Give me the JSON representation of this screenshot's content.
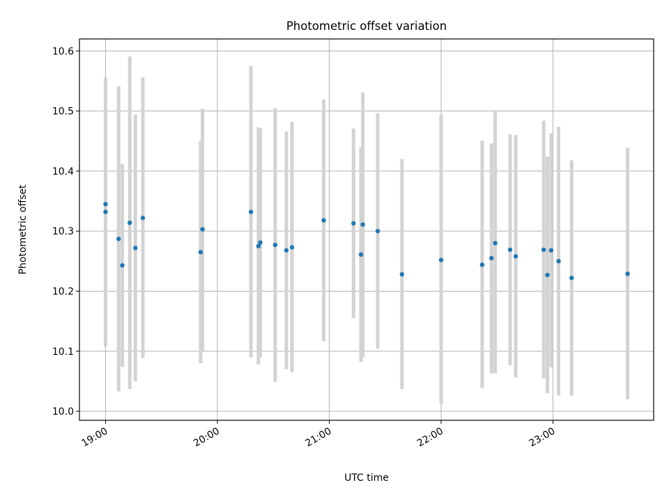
{
  "chart_data": {
    "type": "scatter",
    "title": "Photometric offset variation",
    "xlabel": "UTC time",
    "ylabel": "Photometric offset",
    "xlim": [
      "18:46",
      "23:54"
    ],
    "ylim": [
      9.985,
      10.62
    ],
    "grid": true,
    "x_ticks": [
      "19:00",
      "20:00",
      "21:00",
      "22:00",
      "23:00"
    ],
    "y_ticks": [
      "10.0",
      "10.1",
      "10.2",
      "10.3",
      "10.4",
      "10.5",
      "10.6"
    ],
    "y_tick_values": [
      10.0,
      10.1,
      10.2,
      10.3,
      10.4,
      10.5,
      10.6
    ],
    "colors": {
      "points": "#1f77b4",
      "errorbars": "#d3d3d3"
    },
    "series": [
      {
        "marker": "point",
        "errorbars": "vertical",
        "points": [
          {
            "x": "19:00",
            "y": 10.345,
            "low": 10.134,
            "high": 10.556
          },
          {
            "x": "19:00",
            "y": 10.332,
            "low": 10.108,
            "high": 10.556
          },
          {
            "x": "19:07",
            "y": 10.287,
            "low": 10.033,
            "high": 10.541
          },
          {
            "x": "19:09",
            "y": 10.243,
            "low": 10.074,
            "high": 10.412
          },
          {
            "x": "19:13",
            "y": 10.314,
            "low": 10.037,
            "high": 10.591
          },
          {
            "x": "19:16",
            "y": 10.272,
            "low": 10.05,
            "high": 10.494
          },
          {
            "x": "19:20",
            "y": 10.322,
            "low": 10.089,
            "high": 10.556
          },
          {
            "x": "19:51",
            "y": 10.265,
            "low": 10.08,
            "high": 10.45
          },
          {
            "x": "19:52",
            "y": 10.303,
            "low": 10.101,
            "high": 10.504
          },
          {
            "x": "20:18",
            "y": 10.332,
            "low": 10.09,
            "high": 10.575
          },
          {
            "x": "20:22",
            "y": 10.275,
            "low": 10.078,
            "high": 10.473
          },
          {
            "x": "20:23",
            "y": 10.281,
            "low": 10.09,
            "high": 10.471
          },
          {
            "x": "20:31",
            "y": 10.277,
            "low": 10.049,
            "high": 10.505
          },
          {
            "x": "20:37",
            "y": 10.268,
            "low": 10.07,
            "high": 10.466
          },
          {
            "x": "20:40",
            "y": 10.273,
            "low": 10.065,
            "high": 10.482
          },
          {
            "x": "20:57",
            "y": 10.318,
            "low": 10.117,
            "high": 10.519
          },
          {
            "x": "21:13",
            "y": 10.313,
            "low": 10.155,
            "high": 10.471
          },
          {
            "x": "21:17",
            "y": 10.261,
            "low": 10.082,
            "high": 10.44
          },
          {
            "x": "21:18",
            "y": 10.311,
            "low": 10.09,
            "high": 10.531
          },
          {
            "x": "21:26",
            "y": 10.3,
            "low": 10.104,
            "high": 10.496
          },
          {
            "x": "21:39",
            "y": 10.228,
            "low": 10.037,
            "high": 10.42
          },
          {
            "x": "22:00",
            "y": 10.252,
            "low": 10.012,
            "high": 10.493
          },
          {
            "x": "22:22",
            "y": 10.244,
            "low": 10.039,
            "high": 10.451
          },
          {
            "x": "22:27",
            "y": 10.255,
            "low": 10.063,
            "high": 10.446
          },
          {
            "x": "22:29",
            "y": 10.28,
            "low": 10.063,
            "high": 10.499
          },
          {
            "x": "22:37",
            "y": 10.269,
            "low": 10.077,
            "high": 10.461
          },
          {
            "x": "22:40",
            "y": 10.258,
            "low": 10.056,
            "high": 10.46
          },
          {
            "x": "22:55",
            "y": 10.269,
            "low": 10.055,
            "high": 10.484
          },
          {
            "x": "22:57",
            "y": 10.227,
            "low": 10.03,
            "high": 10.424
          },
          {
            "x": "22:59",
            "y": 10.268,
            "low": 10.073,
            "high": 10.463
          },
          {
            "x": "23:03",
            "y": 10.25,
            "low": 10.026,
            "high": 10.474
          },
          {
            "x": "23:10",
            "y": 10.222,
            "low": 10.026,
            "high": 10.418
          },
          {
            "x": "23:40",
            "y": 10.229,
            "low": 10.02,
            "high": 10.439
          }
        ]
      }
    ]
  }
}
